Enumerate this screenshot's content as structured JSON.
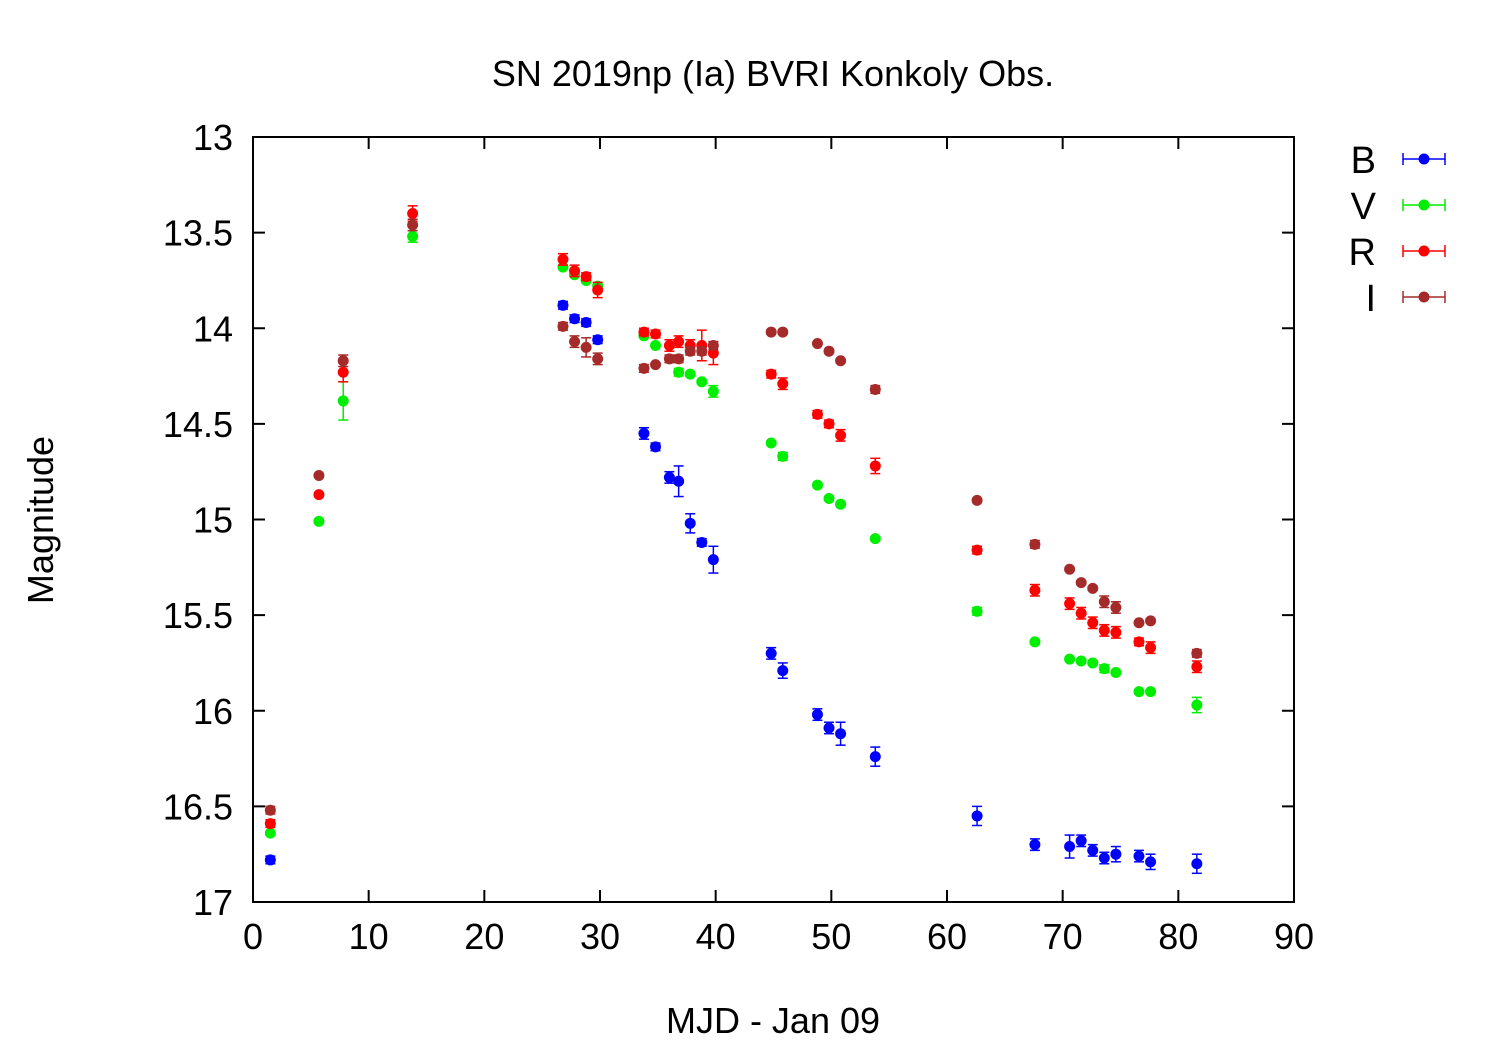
{
  "chart_data": {
    "type": "scatter",
    "title": "SN 2019np (Ia) BVRI Konkoly Obs.",
    "xlabel": "MJD - Jan 09",
    "ylabel": "Magnitude",
    "xlim": [
      0,
      90
    ],
    "ylim": [
      13,
      17
    ],
    "y_inverted": true,
    "xticks": [
      0,
      10,
      20,
      30,
      40,
      50,
      60,
      70,
      80,
      90
    ],
    "yticks": [
      13,
      13.5,
      14,
      14.5,
      15,
      15.5,
      16,
      16.5,
      17
    ],
    "xtick_labels": [
      "0",
      "10",
      "20",
      "30",
      "40",
      "50",
      "60",
      "70",
      "80",
      "90"
    ],
    "ytick_labels": [
      "13",
      "13.5",
      "14",
      "14.5",
      "15",
      "15.5",
      "16",
      "16.5",
      "17"
    ],
    "grid": false,
    "legend_position": "outside-top-right",
    "error_bars": true,
    "series": [
      {
        "name": "B",
        "color": "#0000ff",
        "points": [
          {
            "x": 1.5,
            "y": 16.78,
            "err": 0.02
          },
          {
            "x": 26.8,
            "y": 13.88,
            "err": 0.02
          },
          {
            "x": 27.8,
            "y": 13.95,
            "err": 0.02
          },
          {
            "x": 28.8,
            "y": 13.97,
            "err": 0.02
          },
          {
            "x": 29.8,
            "y": 14.06,
            "err": 0.02
          },
          {
            "x": 33.8,
            "y": 14.55,
            "err": 0.03
          },
          {
            "x": 34.8,
            "y": 14.62,
            "err": 0.02
          },
          {
            "x": 36.0,
            "y": 14.78,
            "err": 0.03
          },
          {
            "x": 36.8,
            "y": 14.8,
            "err": 0.08
          },
          {
            "x": 37.8,
            "y": 15.02,
            "err": 0.05
          },
          {
            "x": 38.8,
            "y": 15.12,
            "err": 0.02
          },
          {
            "x": 39.8,
            "y": 15.21,
            "err": 0.07
          },
          {
            "x": 44.8,
            "y": 15.7,
            "err": 0.03
          },
          {
            "x": 45.8,
            "y": 15.79,
            "err": 0.04
          },
          {
            "x": 48.8,
            "y": 16.02,
            "err": 0.03
          },
          {
            "x": 49.8,
            "y": 16.09,
            "err": 0.03
          },
          {
            "x": 50.8,
            "y": 16.12,
            "err": 0.06
          },
          {
            "x": 53.8,
            "y": 16.24,
            "err": 0.05
          },
          {
            "x": 62.6,
            "y": 16.55,
            "err": 0.05
          },
          {
            "x": 67.6,
            "y": 16.7,
            "err": 0.03
          },
          {
            "x": 70.6,
            "y": 16.71,
            "err": 0.06
          },
          {
            "x": 71.6,
            "y": 16.68,
            "err": 0.03
          },
          {
            "x": 72.6,
            "y": 16.73,
            "err": 0.03
          },
          {
            "x": 73.6,
            "y": 16.77,
            "err": 0.03
          },
          {
            "x": 74.6,
            "y": 16.75,
            "err": 0.04
          },
          {
            "x": 76.6,
            "y": 16.76,
            "err": 0.03
          },
          {
            "x": 77.6,
            "y": 16.79,
            "err": 0.04
          },
          {
            "x": 81.6,
            "y": 16.8,
            "err": 0.05
          }
        ]
      },
      {
        "name": "V",
        "color": "#00ee00",
        "points": [
          {
            "x": 1.5,
            "y": 16.64,
            "err": 0.01
          },
          {
            "x": 5.7,
            "y": 15.01,
            "err": 0.01
          },
          {
            "x": 7.8,
            "y": 14.38,
            "err": 0.1
          },
          {
            "x": 13.8,
            "y": 13.52,
            "err": 0.03
          },
          {
            "x": 26.8,
            "y": 13.68,
            "err": 0.01
          },
          {
            "x": 27.8,
            "y": 13.72,
            "err": 0.01
          },
          {
            "x": 28.8,
            "y": 13.75,
            "err": 0.01
          },
          {
            "x": 29.8,
            "y": 13.78,
            "err": 0.01
          },
          {
            "x": 33.8,
            "y": 14.04,
            "err": 0.01
          },
          {
            "x": 34.8,
            "y": 14.09,
            "err": 0.01
          },
          {
            "x": 36.8,
            "y": 14.23,
            "err": 0.02
          },
          {
            "x": 37.8,
            "y": 14.24,
            "err": 0.01
          },
          {
            "x": 38.8,
            "y": 14.28,
            "err": 0.01
          },
          {
            "x": 39.8,
            "y": 14.33,
            "err": 0.03
          },
          {
            "x": 44.8,
            "y": 14.6,
            "err": 0.01
          },
          {
            "x": 45.8,
            "y": 14.67,
            "err": 0.02
          },
          {
            "x": 48.8,
            "y": 14.82,
            "err": 0.01
          },
          {
            "x": 49.8,
            "y": 14.89,
            "err": 0.01
          },
          {
            "x": 50.8,
            "y": 14.92,
            "err": 0.01
          },
          {
            "x": 53.8,
            "y": 15.1,
            "err": 0.01
          },
          {
            "x": 62.6,
            "y": 15.48,
            "err": 0.02
          },
          {
            "x": 67.6,
            "y": 15.64,
            "err": 0.01
          },
          {
            "x": 70.6,
            "y": 15.73,
            "err": 0.01
          },
          {
            "x": 71.6,
            "y": 15.74,
            "err": 0.01
          },
          {
            "x": 72.6,
            "y": 15.75,
            "err": 0.01
          },
          {
            "x": 73.6,
            "y": 15.78,
            "err": 0.02
          },
          {
            "x": 74.6,
            "y": 15.8,
            "err": 0.01
          },
          {
            "x": 76.6,
            "y": 15.9,
            "err": 0.01
          },
          {
            "x": 77.6,
            "y": 15.9,
            "err": 0.01
          },
          {
            "x": 81.6,
            "y": 15.97,
            "err": 0.04
          }
        ]
      },
      {
        "name": "R",
        "color": "#ff0000",
        "points": [
          {
            "x": 1.5,
            "y": 16.59,
            "err": 0.02
          },
          {
            "x": 5.7,
            "y": 14.87,
            "err": 0.01
          },
          {
            "x": 7.8,
            "y": 14.23,
            "err": 0.05
          },
          {
            "x": 13.8,
            "y": 13.4,
            "err": 0.04
          },
          {
            "x": 26.8,
            "y": 13.64,
            "err": 0.03
          },
          {
            "x": 27.8,
            "y": 13.7,
            "err": 0.03
          },
          {
            "x": 28.8,
            "y": 13.73,
            "err": 0.02
          },
          {
            "x": 29.8,
            "y": 13.8,
            "err": 0.04
          },
          {
            "x": 33.8,
            "y": 14.02,
            "err": 0.02
          },
          {
            "x": 34.8,
            "y": 14.03,
            "err": 0.02
          },
          {
            "x": 36.0,
            "y": 14.09,
            "err": 0.03
          },
          {
            "x": 36.8,
            "y": 14.07,
            "err": 0.03
          },
          {
            "x": 37.8,
            "y": 14.09,
            "err": 0.03
          },
          {
            "x": 38.8,
            "y": 14.09,
            "err": 0.08
          },
          {
            "x": 39.8,
            "y": 14.13,
            "err": 0.06
          },
          {
            "x": 44.8,
            "y": 14.24,
            "err": 0.02
          },
          {
            "x": 45.8,
            "y": 14.29,
            "err": 0.03
          },
          {
            "x": 48.8,
            "y": 14.45,
            "err": 0.02
          },
          {
            "x": 49.8,
            "y": 14.5,
            "err": 0.02
          },
          {
            "x": 50.8,
            "y": 14.56,
            "err": 0.03
          },
          {
            "x": 53.8,
            "y": 14.72,
            "err": 0.04
          },
          {
            "x": 62.6,
            "y": 15.16,
            "err": 0.02
          },
          {
            "x": 67.6,
            "y": 15.37,
            "err": 0.03
          },
          {
            "x": 70.6,
            "y": 15.44,
            "err": 0.03
          },
          {
            "x": 71.6,
            "y": 15.49,
            "err": 0.03
          },
          {
            "x": 72.6,
            "y": 15.54,
            "err": 0.03
          },
          {
            "x": 73.6,
            "y": 15.58,
            "err": 0.03
          },
          {
            "x": 74.6,
            "y": 15.59,
            "err": 0.03
          },
          {
            "x": 76.6,
            "y": 15.64,
            "err": 0.02
          },
          {
            "x": 77.6,
            "y": 15.67,
            "err": 0.03
          },
          {
            "x": 81.6,
            "y": 15.77,
            "err": 0.03
          }
        ]
      },
      {
        "name": "I",
        "color": "#a52a2a",
        "points": [
          {
            "x": 1.5,
            "y": 16.52,
            "err": 0.02
          },
          {
            "x": 5.7,
            "y": 14.77,
            "err": 0.01
          },
          {
            "x": 7.8,
            "y": 14.17,
            "err": 0.03
          },
          {
            "x": 13.8,
            "y": 13.46,
            "err": 0.03
          },
          {
            "x": 26.8,
            "y": 13.99,
            "err": 0.02
          },
          {
            "x": 27.8,
            "y": 14.07,
            "err": 0.03
          },
          {
            "x": 28.8,
            "y": 14.1,
            "err": 0.05
          },
          {
            "x": 29.8,
            "y": 14.16,
            "err": 0.03
          },
          {
            "x": 33.8,
            "y": 14.21,
            "err": 0.02
          },
          {
            "x": 34.8,
            "y": 14.19,
            "err": 0.01
          },
          {
            "x": 36.0,
            "y": 14.16,
            "err": 0.02
          },
          {
            "x": 36.8,
            "y": 14.16,
            "err": 0.02
          },
          {
            "x": 37.8,
            "y": 14.12,
            "err": 0.02
          },
          {
            "x": 38.8,
            "y": 14.12,
            "err": 0.02
          },
          {
            "x": 39.8,
            "y": 14.09,
            "err": 0.02
          },
          {
            "x": 44.8,
            "y": 14.02,
            "err": 0.01
          },
          {
            "x": 45.8,
            "y": 14.02,
            "err": 0.01
          },
          {
            "x": 48.8,
            "y": 14.08,
            "err": 0.01
          },
          {
            "x": 49.8,
            "y": 14.12,
            "err": 0.01
          },
          {
            "x": 50.8,
            "y": 14.17,
            "err": 0.01
          },
          {
            "x": 53.8,
            "y": 14.32,
            "err": 0.02
          },
          {
            "x": 62.6,
            "y": 14.9,
            "err": 0.01
          },
          {
            "x": 67.6,
            "y": 15.13,
            "err": 0.02
          },
          {
            "x": 70.6,
            "y": 15.26,
            "err": 0.01
          },
          {
            "x": 71.6,
            "y": 15.33,
            "err": 0.01
          },
          {
            "x": 72.6,
            "y": 15.36,
            "err": 0.01
          },
          {
            "x": 73.6,
            "y": 15.43,
            "err": 0.03
          },
          {
            "x": 74.6,
            "y": 15.46,
            "err": 0.03
          },
          {
            "x": 76.6,
            "y": 15.54,
            "err": 0.01
          },
          {
            "x": 77.6,
            "y": 15.53,
            "err": 0.01
          },
          {
            "x": 81.6,
            "y": 15.7,
            "err": 0.02
          }
        ]
      }
    ]
  }
}
